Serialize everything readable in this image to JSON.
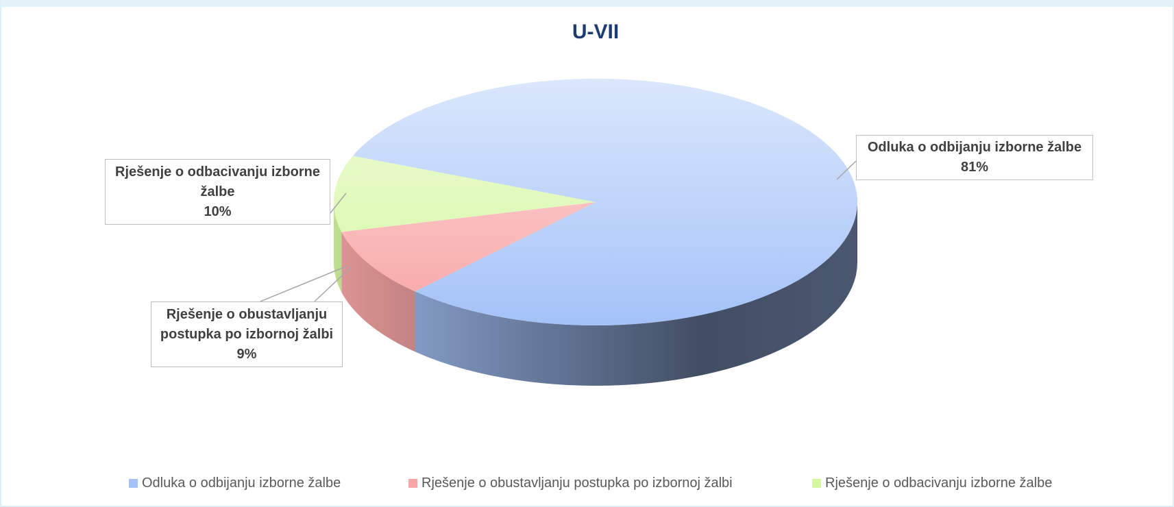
{
  "chart_data": {
    "type": "pie",
    "title": "U-VII",
    "categories": [
      "Odluka o odbijanju izborne žalbe",
      "Rješenje o obustavljanju postupka po izbornoj žalbi",
      "Rješenje o odbacivanju izborne žalbe"
    ],
    "values": [
      81,
      9,
      10
    ],
    "value_labels": [
      "81%",
      "9%",
      "10%"
    ],
    "colors": [
      "#a4c2f8",
      "#f8a5a5",
      "#d5f7a0"
    ],
    "legend": "bottom"
  }
}
